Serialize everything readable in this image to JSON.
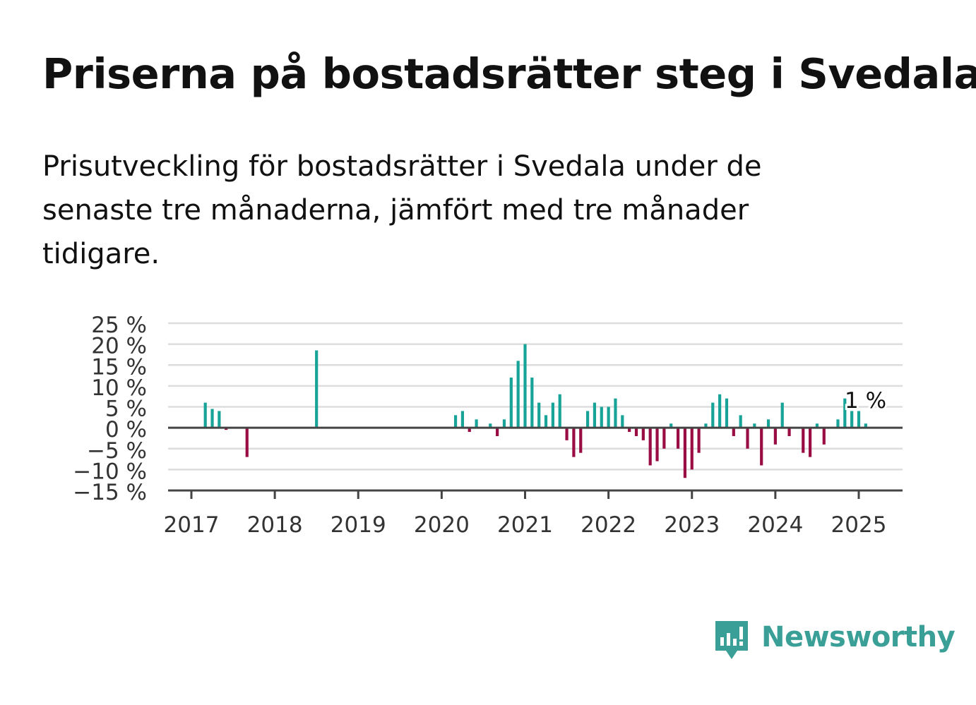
{
  "title": "Priserna på bostadsrätter steg i Svedala",
  "subtitle": "Prisutveckling för bostadsrätter i Svedala under de senaste tre månaderna, jämfört med tre månader tidigare.",
  "brand": {
    "name": "Newsworthy",
    "color": "#3a9f96"
  },
  "colors": {
    "positive": "#17a398",
    "negative": "#9a0d44",
    "grid": "#dddddd",
    "axis": "#444444"
  },
  "chart_data": {
    "type": "bar",
    "title": "",
    "xlabel": "",
    "ylabel": "",
    "ylim": [
      -15,
      25
    ],
    "y_ticks": [
      25,
      20,
      15,
      10,
      5,
      0,
      -5,
      -10,
      -15
    ],
    "y_tick_labels": [
      "25 %",
      "20 %",
      "15 %",
      "10 %",
      "5 %",
      "0 %",
      "−5 %",
      "−10 %",
      "−15 %"
    ],
    "x_ticks": [
      "2017",
      "2018",
      "2019",
      "2020",
      "2021",
      "2022",
      "2023",
      "2024",
      "2025"
    ],
    "x_range": [
      "2016-10",
      "2025-05"
    ],
    "grid": true,
    "annotation": {
      "date": "2025-01",
      "text": "1 %"
    },
    "series": [
      {
        "data": [
          [
            "2017-03",
            6
          ],
          [
            "2017-04",
            4.5
          ],
          [
            "2017-05",
            4
          ],
          [
            "2017-06",
            -0.5
          ],
          [
            "2017-09",
            -7
          ],
          [
            "2018-07",
            18.5
          ],
          [
            "2020-03",
            3
          ],
          [
            "2020-04",
            4
          ],
          [
            "2020-05",
            -1
          ],
          [
            "2020-06",
            2
          ],
          [
            "2020-08",
            1
          ],
          [
            "2020-09",
            -2
          ],
          [
            "2020-10",
            2
          ],
          [
            "2020-11",
            12
          ],
          [
            "2020-12",
            16
          ],
          [
            "2021-01",
            20
          ],
          [
            "2021-02",
            12
          ],
          [
            "2021-03",
            6
          ],
          [
            "2021-04",
            3
          ],
          [
            "2021-05",
            6
          ],
          [
            "2021-06",
            8
          ],
          [
            "2021-07",
            -3
          ],
          [
            "2021-08",
            -7
          ],
          [
            "2021-09",
            -6
          ],
          [
            "2021-10",
            4
          ],
          [
            "2021-11",
            6
          ],
          [
            "2021-12",
            5
          ],
          [
            "2022-01",
            5
          ],
          [
            "2022-02",
            7
          ],
          [
            "2022-03",
            3
          ],
          [
            "2022-04",
            -1
          ],
          [
            "2022-05",
            -2
          ],
          [
            "2022-06",
            -3
          ],
          [
            "2022-07",
            -9
          ],
          [
            "2022-08",
            -8
          ],
          [
            "2022-09",
            -5
          ],
          [
            "2022-10",
            1
          ],
          [
            "2022-11",
            -5
          ],
          [
            "2022-12",
            -12
          ],
          [
            "2023-01",
            -10
          ],
          [
            "2023-02",
            -6
          ],
          [
            "2023-03",
            1
          ],
          [
            "2023-04",
            6
          ],
          [
            "2023-05",
            8
          ],
          [
            "2023-06",
            7
          ],
          [
            "2023-07",
            -2
          ],
          [
            "2023-08",
            3
          ],
          [
            "2023-09",
            -5
          ],
          [
            "2023-10",
            1
          ],
          [
            "2023-11",
            -9
          ],
          [
            "2023-12",
            2
          ],
          [
            "2024-01",
            -4
          ],
          [
            "2024-02",
            6
          ],
          [
            "2024-03",
            -2
          ],
          [
            "2024-05",
            -6
          ],
          [
            "2024-06",
            -7
          ],
          [
            "2024-07",
            1
          ],
          [
            "2024-08",
            -4
          ],
          [
            "2024-10",
            2
          ],
          [
            "2024-11",
            7
          ],
          [
            "2024-12",
            4
          ],
          [
            "2025-01",
            4
          ],
          [
            "2025-02",
            1
          ]
        ]
      }
    ]
  }
}
